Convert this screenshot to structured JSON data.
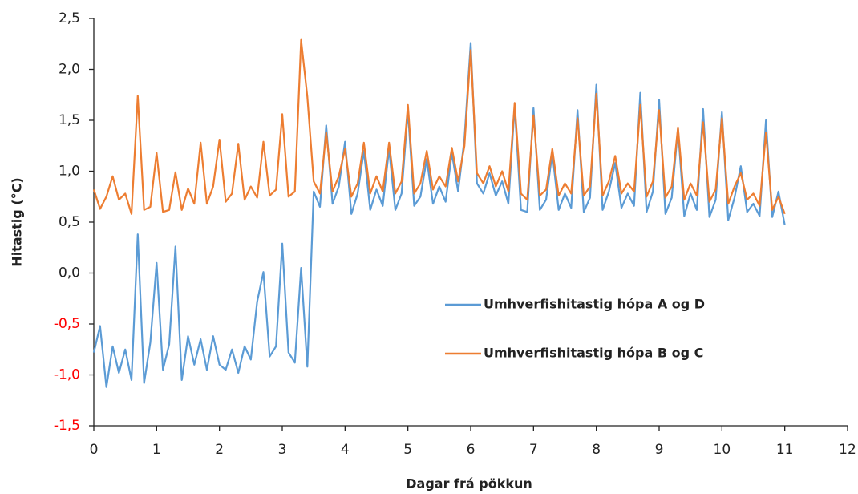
{
  "chart_data": {
    "type": "line",
    "xlabel": "Dagar frá pökkun",
    "ylabel": "Hitastig (°C)",
    "x": [
      0,
      0.1,
      0.2,
      0.3,
      0.4,
      0.5,
      0.6,
      0.7,
      0.8,
      0.9,
      1,
      1.1,
      1.2,
      1.3,
      1.4,
      1.5,
      1.6,
      1.7,
      1.8,
      1.9,
      2,
      2.1,
      2.2,
      2.3,
      2.4,
      2.5,
      2.6,
      2.7,
      2.8,
      2.9,
      3,
      3.1,
      3.2,
      3.3,
      3.4,
      3.5,
      3.6,
      3.7,
      3.8,
      3.9,
      4,
      4.1,
      4.2,
      4.3,
      4.4,
      4.5,
      4.6,
      4.7,
      4.8,
      4.9,
      5,
      5.1,
      5.2,
      5.3,
      5.4,
      5.5,
      5.6,
      5.7,
      5.8,
      5.9,
      6,
      6.1,
      6.2,
      6.3,
      6.4,
      6.5,
      6.6,
      6.7,
      6.8,
      6.9,
      7,
      7.1,
      7.2,
      7.3,
      7.4,
      7.5,
      7.6,
      7.7,
      7.8,
      7.9,
      8,
      8.1,
      8.2,
      8.3,
      8.4,
      8.5,
      8.6,
      8.7,
      8.8,
      8.9,
      9,
      9.1,
      9.2,
      9.3,
      9.4,
      9.5,
      9.6,
      9.7,
      9.8,
      9.9,
      10,
      10.1,
      10.2,
      10.3,
      10.4,
      10.5,
      10.6,
      10.7,
      10.8,
      10.9,
      11
    ],
    "series": [
      {
        "name": "Umhverfishitastig hópa A og D",
        "color": "#5b9bd5",
        "values": [
          -0.78,
          -0.52,
          -1.12,
          -0.72,
          -0.98,
          -0.75,
          -1.05,
          0.38,
          -1.08,
          -0.68,
          0.1,
          -0.95,
          -0.7,
          0.26,
          -1.05,
          -0.62,
          -0.9,
          -0.65,
          -0.95,
          -0.62,
          -0.9,
          -0.95,
          -0.75,
          -0.98,
          -0.72,
          -0.85,
          -0.28,
          0.01,
          -0.82,
          -0.72,
          0.29,
          -0.78,
          -0.88,
          0.05,
          -0.92,
          0.8,
          0.65,
          1.45,
          0.68,
          0.85,
          1.29,
          0.58,
          0.78,
          1.2,
          0.62,
          0.82,
          0.66,
          1.22,
          0.62,
          0.78,
          1.6,
          0.66,
          0.75,
          1.12,
          0.68,
          0.85,
          0.7,
          1.18,
          0.8,
          1.32,
          2.26,
          0.88,
          0.78,
          0.98,
          0.76,
          0.9,
          0.68,
          1.64,
          0.62,
          0.6,
          1.62,
          0.62,
          0.72,
          1.18,
          0.62,
          0.78,
          0.64,
          1.6,
          0.6,
          0.74,
          1.85,
          0.62,
          0.8,
          1.08,
          0.64,
          0.78,
          0.66,
          1.77,
          0.6,
          0.8,
          1.7,
          0.58,
          0.74,
          1.42,
          0.56,
          0.78,
          0.62,
          1.61,
          0.55,
          0.72,
          1.58,
          0.52,
          0.74,
          1.05,
          0.6,
          0.68,
          0.56,
          1.5,
          0.55,
          0.8,
          0.47
        ]
      },
      {
        "name": "Umhverfishitastig hópa B og C",
        "color": "#ed7d31",
        "values": [
          0.82,
          0.63,
          0.75,
          0.95,
          0.72,
          0.78,
          0.58,
          1.74,
          0.62,
          0.65,
          1.18,
          0.6,
          0.62,
          0.99,
          0.62,
          0.83,
          0.68,
          1.28,
          0.68,
          0.85,
          1.31,
          0.7,
          0.78,
          1.27,
          0.72,
          0.85,
          0.74,
          1.29,
          0.76,
          0.82,
          1.56,
          0.75,
          0.8,
          2.29,
          1.73,
          0.9,
          0.78,
          1.38,
          0.8,
          0.95,
          1.22,
          0.75,
          0.88,
          1.28,
          0.78,
          0.95,
          0.8,
          1.28,
          0.78,
          0.9,
          1.65,
          0.78,
          0.88,
          1.2,
          0.82,
          0.95,
          0.85,
          1.23,
          0.9,
          1.25,
          2.19,
          0.98,
          0.88,
          1.05,
          0.85,
          1.0,
          0.8,
          1.67,
          0.78,
          0.72,
          1.55,
          0.76,
          0.82,
          1.22,
          0.76,
          0.88,
          0.78,
          1.52,
          0.76,
          0.85,
          1.76,
          0.76,
          0.9,
          1.15,
          0.78,
          0.88,
          0.8,
          1.65,
          0.75,
          0.9,
          1.6,
          0.74,
          0.85,
          1.43,
          0.72,
          0.88,
          0.76,
          1.48,
          0.7,
          0.82,
          1.52,
          0.68,
          0.85,
          0.98,
          0.72,
          0.78,
          0.66,
          1.38,
          0.62,
          0.75,
          0.58
        ]
      }
    ],
    "xlim": [
      0,
      12
    ],
    "xticks": [
      0,
      1,
      2,
      3,
      4,
      5,
      6,
      7,
      8,
      9,
      10,
      11,
      12
    ],
    "ylim": [
      -1.5,
      2.5
    ],
    "yticks": [
      {
        "value": -1.5,
        "label": "-1,5"
      },
      {
        "value": -1.0,
        "label": "-1,0"
      },
      {
        "value": -0.5,
        "label": "-0,5"
      },
      {
        "value": 0,
        "label": "0,0"
      },
      {
        "value": 0.5,
        "label": "0,5"
      },
      {
        "value": 1.0,
        "label": "1,0"
      },
      {
        "value": 1.5,
        "label": "1,5"
      },
      {
        "value": 2.0,
        "label": "2,0"
      },
      {
        "value": 2.5,
        "label": "2,5"
      }
    ],
    "negative_tick_color": "#ff0000",
    "grid": false
  }
}
